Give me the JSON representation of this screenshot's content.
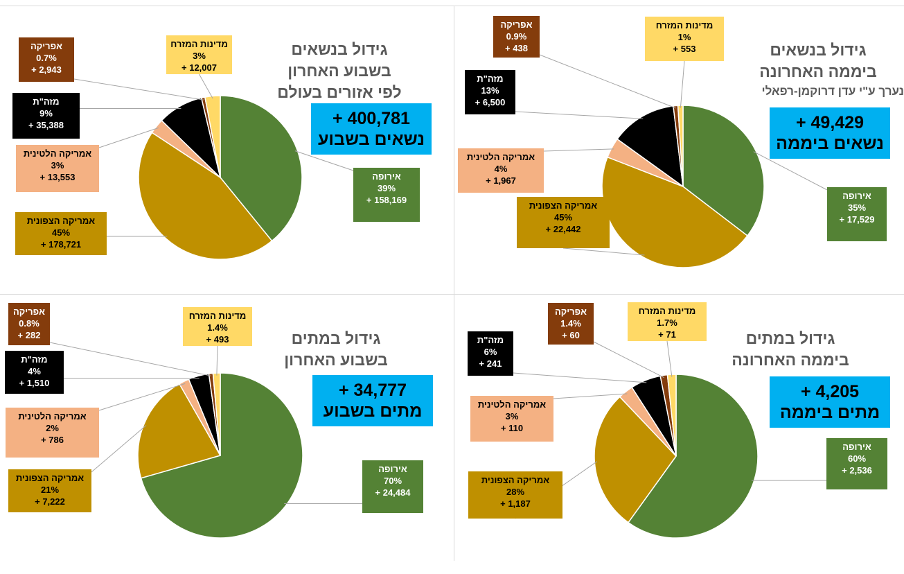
{
  "colors": {
    "europe": "#548235",
    "north_america": "#bf9000",
    "latin_america": "#f4b183",
    "asia": "#000000",
    "africa": "#843c0c",
    "middle_east": "#ffd966",
    "total_box": "#00b0f0",
    "title_text": "#595959"
  },
  "chart_data": [
    {
      "type": "pie",
      "panel": "top-left",
      "title_lines": [
        "גידול בנשאים",
        "בשבוע האחרון",
        "לפי אזורים בעולם"
      ],
      "total_value": "+ 400,781",
      "total_label": "נשאים בשבוע",
      "slices": [
        {
          "name": "אירופה",
          "percent": 39,
          "percent_label": "39%",
          "value_label": "+ 158,169",
          "color_key": "europe"
        },
        {
          "name": "אמריקה הצפונית",
          "percent": 45,
          "percent_label": "45%",
          "value_label": "+ 178,721",
          "color_key": "north_america"
        },
        {
          "name": "אמריקה הלטינית",
          "percent": 3,
          "percent_label": "3%",
          "value_label": "+ 13,553",
          "color_key": "latin_america"
        },
        {
          "name": "מזה\"ת",
          "percent": 9,
          "percent_label": "9%",
          "value_label": "+ 35,388",
          "color_key": "asia"
        },
        {
          "name": "אפריקה",
          "percent": 0.7,
          "percent_label": "0.7%",
          "value_label": "+ 2,943",
          "color_key": "africa"
        },
        {
          "name": "מדינות המזרח",
          "percent": 3,
          "percent_label": "3%",
          "value_label": "+ 12,007",
          "color_key": "middle_east"
        }
      ]
    },
    {
      "type": "pie",
      "panel": "top-right",
      "title_lines": [
        "גידול בנשאים",
        "ביממה האחרונה"
      ],
      "author": "נערך ע\"י עדן דרוקמן-רפאלי",
      "total_value": "+ 49,429",
      "total_label": "נשאים ביממה",
      "slices": [
        {
          "name": "אירופה",
          "percent": 35,
          "percent_label": "35%",
          "value_label": "+ 17,529",
          "color_key": "europe"
        },
        {
          "name": "אמריקה הצפונית",
          "percent": 45,
          "percent_label": "45%",
          "value_label": "+ 22,442",
          "color_key": "north_america"
        },
        {
          "name": "אמריקה הלטינית",
          "percent": 4,
          "percent_label": "4%",
          "value_label": "+ 1,967",
          "color_key": "latin_america"
        },
        {
          "name": "מזה\"ת",
          "percent": 13,
          "percent_label": "13%",
          "value_label": "+ 6,500",
          "color_key": "asia"
        },
        {
          "name": "אפריקה",
          "percent": 0.9,
          "percent_label": "0.9%",
          "value_label": "+ 438",
          "color_key": "africa"
        },
        {
          "name": "מדינות המזרח",
          "percent": 1,
          "percent_label": "1%",
          "value_label": "+ 553",
          "color_key": "middle_east"
        }
      ]
    },
    {
      "type": "pie",
      "panel": "bottom-left",
      "title_lines": [
        "גידול במתים",
        "בשבוע האחרון"
      ],
      "total_value": "+ 34,777",
      "total_label": "מתים בשבוע",
      "slices": [
        {
          "name": "אירופה",
          "percent": 70,
          "percent_label": "70%",
          "value_label": "+ 24,484",
          "color_key": "europe"
        },
        {
          "name": "אמריקה הצפונית",
          "percent": 21,
          "percent_label": "21%",
          "value_label": "+ 7,222",
          "color_key": "north_america"
        },
        {
          "name": "אמריקה הלטינית",
          "percent": 2,
          "percent_label": "2%",
          "value_label": "+ 786",
          "color_key": "latin_america"
        },
        {
          "name": "מזה\"ת",
          "percent": 4,
          "percent_label": "4%",
          "value_label": "+ 1,510",
          "color_key": "asia"
        },
        {
          "name": "אפריקה",
          "percent": 0.8,
          "percent_label": "0.8%",
          "value_label": "+ 282",
          "color_key": "africa"
        },
        {
          "name": "מדינות המזרח",
          "percent": 1.4,
          "percent_label": "1.4%",
          "value_label": "+ 493",
          "color_key": "middle_east"
        }
      ]
    },
    {
      "type": "pie",
      "panel": "bottom-right",
      "title_lines": [
        "גידול במתים",
        "ביממה האחרונה"
      ],
      "total_value": "+ 4,205",
      "total_label": "מתים ביממה",
      "slices": [
        {
          "name": "אירופה",
          "percent": 60,
          "percent_label": "60%",
          "value_label": "+ 2,536",
          "color_key": "europe"
        },
        {
          "name": "אמריקה הצפונית",
          "percent": 28,
          "percent_label": "28%",
          "value_label": "+ 1,187",
          "color_key": "north_america"
        },
        {
          "name": "אמריקה הלטינית",
          "percent": 3,
          "percent_label": "3%",
          "value_label": "+ 110",
          "color_key": "latin_america"
        },
        {
          "name": "מזה\"ת",
          "percent": 6,
          "percent_label": "6%",
          "value_label": "+ 241",
          "color_key": "asia"
        },
        {
          "name": "אפריקה",
          "percent": 1.4,
          "percent_label": "1.4%",
          "value_label": "+ 60",
          "color_key": "africa"
        },
        {
          "name": "מדינות המזרח",
          "percent": 1.7,
          "percent_label": "1.7%",
          "value_label": "+ 71",
          "color_key": "middle_east"
        }
      ]
    }
  ]
}
